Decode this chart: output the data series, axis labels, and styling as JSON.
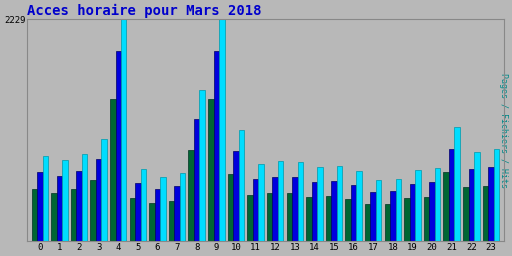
{
  "title": "Acces horaire pour Mars 2018",
  "title_color": "#0000cc",
  "ylabel": "Pages / Fichiers / Hits",
  "ylabel_color": "#008888",
  "background_color": "#b8b8b8",
  "plot_bg_color": "#b8b8b8",
  "ylim": [
    0,
    2229
  ],
  "yticks": [
    2229
  ],
  "hours": [
    0,
    1,
    2,
    3,
    4,
    5,
    6,
    7,
    8,
    9,
    10,
    11,
    12,
    13,
    14,
    15,
    16,
    17,
    18,
    19,
    20,
    21,
    22,
    23
  ],
  "pages": [
    530,
    490,
    530,
    620,
    1430,
    440,
    390,
    410,
    920,
    1430,
    680,
    470,
    490,
    490,
    450,
    455,
    425,
    375,
    380,
    435,
    445,
    695,
    545,
    560
  ],
  "fichiers": [
    700,
    660,
    710,
    830,
    1910,
    590,
    525,
    555,
    1230,
    1910,
    905,
    625,
    650,
    645,
    600,
    610,
    570,
    500,
    505,
    580,
    595,
    930,
    725,
    750
  ],
  "hits": [
    860,
    820,
    875,
    1030,
    2229,
    730,
    650,
    690,
    1520,
    2229,
    1120,
    775,
    805,
    800,
    745,
    755,
    710,
    620,
    625,
    720,
    740,
    1150,
    900,
    930
  ],
  "color_pages": "#006633",
  "color_fichiers": "#0000dd",
  "color_hits": "#00ddff",
  "bar_width": 0.28,
  "grid_color": "#999999"
}
